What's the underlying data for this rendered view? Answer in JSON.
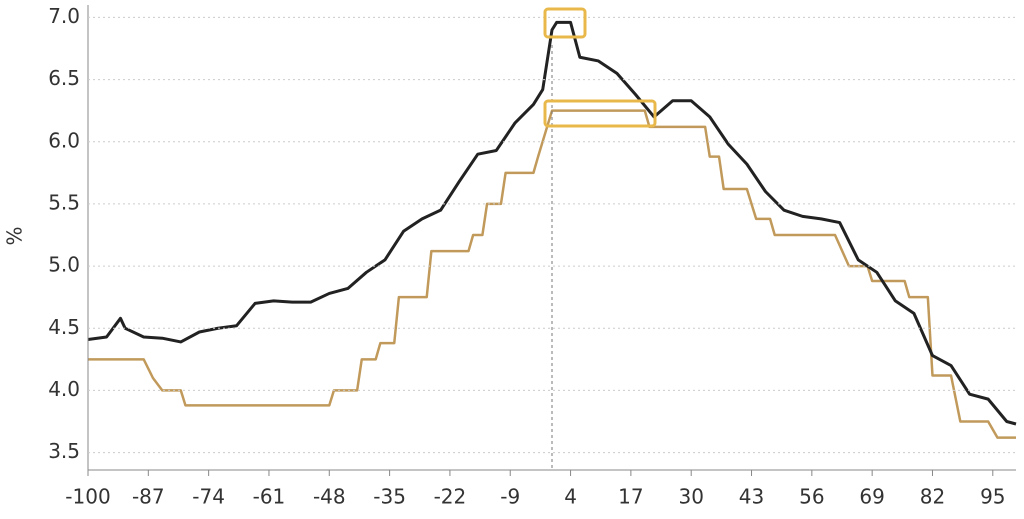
{
  "chart_data": {
    "type": "line",
    "y_label": "%",
    "xlim": [
      -100,
      100
    ],
    "xticks": [
      -100,
      -87,
      -74,
      -61,
      -48,
      -35,
      -22,
      -9,
      4,
      17,
      30,
      43,
      56,
      69,
      82,
      95
    ],
    "ylim": [
      3.36,
      7.1
    ],
    "yticks": [
      {
        "value": 3.5,
        "label": "3.5"
      },
      {
        "value": 4,
        "label": "4.0"
      },
      {
        "value": 4.5,
        "label": "4.5"
      },
      {
        "value": 5,
        "label": "5.0"
      },
      {
        "value": 5.5,
        "label": "5.5"
      },
      {
        "value": 6,
        "label": "6.0"
      },
      {
        "value": 6.5,
        "label": "6.5"
      },
      {
        "value": 7,
        "label": "7.0"
      }
    ],
    "grid": true,
    "vline_x": 0,
    "series": [
      {
        "color": "#222222",
        "x": [
          -100,
          -96,
          -93,
          -92,
          -88,
          -84,
          -80,
          -76,
          -72,
          -68,
          -64,
          -60,
          -56,
          -52,
          -48,
          -44,
          -40,
          -36,
          -32,
          -28,
          -24,
          -20,
          -16,
          -12,
          -8,
          -4,
          -2,
          0,
          1,
          4,
          6,
          10,
          14,
          18,
          22,
          26,
          30,
          34,
          38,
          42,
          46,
          50,
          54,
          58,
          62,
          66,
          70,
          74,
          78,
          82,
          86,
          90,
          94,
          98,
          100
        ],
        "values": [
          4.41,
          4.43,
          4.58,
          4.5,
          4.43,
          4.42,
          4.39,
          4.47,
          4.5,
          4.52,
          4.7,
          4.72,
          4.71,
          4.71,
          4.78,
          4.82,
          4.95,
          5.05,
          5.28,
          5.38,
          5.45,
          5.68,
          5.9,
          5.93,
          6.15,
          6.3,
          6.42,
          6.9,
          6.96,
          6.96,
          6.68,
          6.65,
          6.55,
          6.38,
          6.2,
          6.33,
          6.33,
          6.2,
          5.98,
          5.82,
          5.6,
          5.45,
          5.4,
          5.38,
          5.35,
          5.05,
          4.95,
          4.72,
          4.62,
          4.28,
          4.2,
          3.97,
          3.93,
          3.75,
          3.73
        ]
      },
      {
        "color": "#c19a5b",
        "x": [
          -100,
          -88,
          -86,
          -84,
          -80,
          -79,
          -48,
          -47,
          -42,
          -41,
          -38,
          -37,
          -34,
          -33,
          -27,
          -26,
          -18,
          -17,
          -15,
          -14,
          -11,
          -10,
          -4,
          -3,
          0,
          20,
          21,
          33,
          34,
          36,
          37,
          42,
          44,
          47,
          48,
          61,
          64,
          68,
          69,
          76,
          77,
          81,
          82,
          86,
          88,
          94,
          96,
          100
        ],
        "values": [
          4.25,
          4.25,
          4.1,
          4.0,
          4.0,
          3.88,
          3.88,
          4.0,
          4.0,
          4.25,
          4.25,
          4.38,
          4.38,
          4.75,
          4.75,
          5.12,
          5.12,
          5.25,
          5.25,
          5.5,
          5.5,
          5.75,
          5.75,
          5.88,
          6.25,
          6.25,
          6.12,
          6.12,
          5.88,
          5.88,
          5.62,
          5.62,
          5.38,
          5.38,
          5.25,
          5.25,
          5.0,
          5.0,
          4.88,
          4.88,
          4.75,
          4.75,
          4.12,
          4.12,
          3.75,
          3.75,
          3.62,
          3.62
        ]
      }
    ]
  }
}
